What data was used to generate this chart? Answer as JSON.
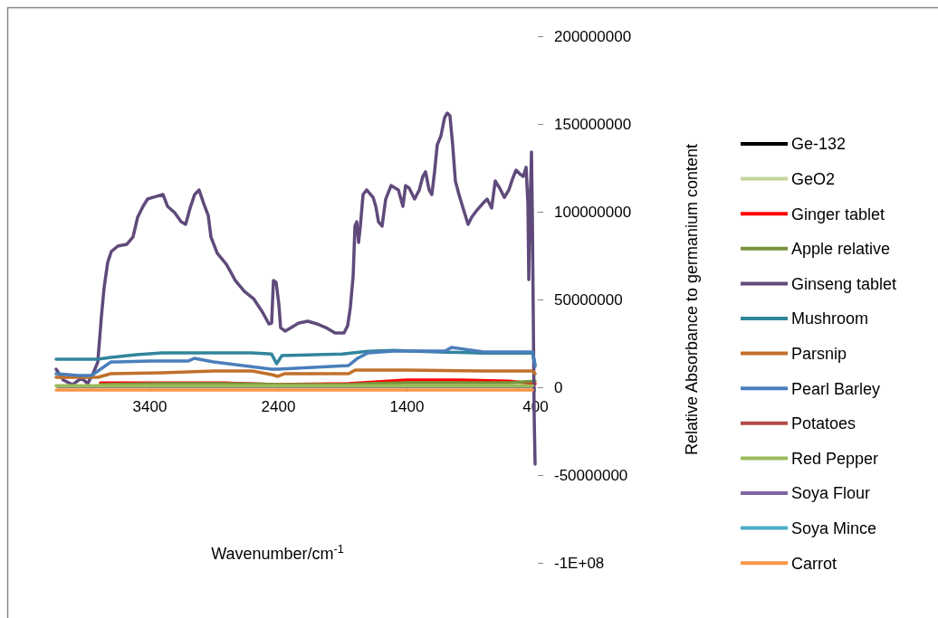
{
  "chart_data": {
    "type": "line",
    "xlabel": "Wavenumber/cm$^{-1}$",
    "ylabel": "Relative Absorbance to germanium content",
    "xlim": [
      4125,
      400
    ],
    "xticks": [
      3400,
      2400,
      1400,
      400
    ],
    "ylim": [
      -100000000,
      200000000
    ],
    "yticks": [
      {
        "value": 200000000,
        "label": "200000000"
      },
      {
        "value": 150000000,
        "label": "150000000"
      },
      {
        "value": 100000000,
        "label": "100000000"
      },
      {
        "value": 50000000,
        "label": "50000000"
      },
      0,
      {
        "value": -50000000,
        "label": "-50000000"
      },
      {
        "value": -100000000,
        "label": "-1E+08"
      }
    ],
    "grid": false,
    "legend": "right",
    "marker": "none",
    "line_style": "solid",
    "series": [
      {
        "name": "Ge-132",
        "color": "#000000"
      },
      {
        "name": "GeO2",
        "color": "#c4d79b"
      },
      {
        "name": "Ginger tablet",
        "color": "#ff0000",
        "x": [
          3780,
          3300,
          2800,
          2400,
          1850,
          1400,
          1000,
          600,
          400
        ],
        "values": [
          2400000,
          2400000,
          2400000,
          1500000,
          2000000,
          4100000,
          4100000,
          3500000,
          2000000
        ]
      },
      {
        "name": "Apple relative",
        "color": "#77933c",
        "x": [
          3780,
          3300,
          2800,
          2400,
          1850,
          1700,
          1400,
          1000,
          600,
          400
        ],
        "values": [
          1500000,
          2100000,
          2100000,
          1500000,
          1500000,
          2100000,
          2600000,
          2600000,
          2600000,
          3500000
        ]
      },
      {
        "name": "Ginseng tablet",
        "color": "#604a7b",
        "x": [
          4125,
          4069,
          3998,
          3928,
          3879,
          3836,
          3801,
          3773,
          3752,
          3724,
          3696,
          3646,
          3576,
          3527,
          3491,
          3449,
          3414,
          3373,
          3294,
          3259,
          3203,
          3153,
          3118,
          3083,
          3048,
          3013,
          2977,
          2942,
          2921,
          2872,
          2801,
          2731,
          2660,
          2590,
          2520,
          2470,
          2449,
          2435,
          2414,
          2393,
          2379,
          2344,
          2238,
          2168,
          2097,
          2027,
          1956,
          1886,
          1858,
          1837,
          1815,
          1801,
          1787,
          1773,
          1759,
          1738,
          1710,
          1660,
          1639,
          1618,
          1590,
          1562,
          1520,
          1463,
          1428,
          1407,
          1379,
          1337,
          1301,
          1273,
          1252,
          1224,
          1203,
          1182,
          1161,
          1132,
          1104,
          1083,
          1062,
          1041,
          1020,
          992,
          956,
          921,
          893,
          851,
          808,
          773,
          738,
          710,
          675,
          639,
          604,
          576,
          548,
          520,
          492,
          470,
          456,
          449,
          442,
          428,
          421,
          414,
          407,
          400
        ],
        "values": [
          10300000,
          4100000,
          1500000,
          5200000,
          2100000,
          8200000,
          14400000,
          40200000,
          56700000,
          71100000,
          77300000,
          80400000,
          81400000,
          85600000,
          96900000,
          103100000,
          107200000,
          108200000,
          109800000,
          103100000,
          99500000,
          94300000,
          92800000,
          102100000,
          109800000,
          112400000,
          104600000,
          97900000,
          85600000,
          76300000,
          70100000,
          60800000,
          54600000,
          50500000,
          42800000,
          36100000,
          36600000,
          60800000,
          59800000,
          47400000,
          34000000,
          32000000,
          36600000,
          37600000,
          36100000,
          34000000,
          30900000,
          30900000,
          35100000,
          45400000,
          63400000,
          91800000,
          94300000,
          82500000,
          91800000,
          109800000,
          112400000,
          108200000,
          103100000,
          94300000,
          91800000,
          107200000,
          114900000,
          112400000,
          103100000,
          114900000,
          113400000,
          107200000,
          112400000,
          120100000,
          122700000,
          112400000,
          109800000,
          122700000,
          138100000,
          143300000,
          153600000,
          156200000,
          154600000,
          138100000,
          117500000,
          109800000,
          101000000,
          92800000,
          96900000,
          101000000,
          104600000,
          107200000,
          102100000,
          117500000,
          113400000,
          108200000,
          112400000,
          118600000,
          123700000,
          121600000,
          120100000,
          125300000,
          104600000,
          61300000,
          94300000,
          134000000,
          96900000,
          40200000,
          -16500000,
          -43800000
        ]
      },
      {
        "name": "Mushroom",
        "color": "#31859c",
        "x": [
          4125,
          3800,
          3700,
          3500,
          3300,
          2600,
          2450,
          2410,
          2370,
          1900,
          1700,
          1500,
          1100,
          800,
          420,
          400
        ],
        "values": [
          16000000,
          16000000,
          17000000,
          18500000,
          19600000,
          19600000,
          19000000,
          13400000,
          18000000,
          19000000,
          20500000,
          21000000,
          20000000,
          19500000,
          19500000,
          13000000
        ]
      },
      {
        "name": "Parsnip",
        "color": "#c0702c",
        "x": [
          4125,
          3800,
          3700,
          3300,
          2900,
          2600,
          2450,
          2400,
          2350,
          1850,
          1800,
          1400,
          800,
          420,
          400
        ],
        "values": [
          5700000,
          5700000,
          7700000,
          8200000,
          9300000,
          9300000,
          7200000,
          6200000,
          7700000,
          7700000,
          9800000,
          9800000,
          9300000,
          9300000,
          7700000
        ]
      },
      {
        "name": "Pearl Barley",
        "color": "#4a7ebb",
        "x": [
          4125,
          3950,
          3850,
          3700,
          3650,
          3400,
          3100,
          3050,
          2900,
          2450,
          2400,
          1850,
          1780,
          1700,
          1500,
          1100,
          1050,
          800,
          420,
          400
        ],
        "values": [
          7700000,
          6700000,
          6700000,
          14400000,
          14400000,
          14900000,
          14900000,
          16500000,
          14400000,
          10300000,
          10300000,
          12400000,
          16500000,
          19600000,
          20600000,
          20600000,
          22700000,
          20100000,
          20100000,
          11900000
        ]
      },
      {
        "name": "Potatoes",
        "color": "#b54a47"
      },
      {
        "name": "Red Pepper",
        "color": "#9bbb59",
        "x": [
          4125,
          3950,
          3800,
          3000,
          2000,
          1000,
          420
        ],
        "values": [
          900000,
          900000,
          900000,
          900000,
          900000,
          900000,
          900000
        ]
      },
      {
        "name": "Soya Flour",
        "color": "#8064a2"
      },
      {
        "name": "Soya Mince",
        "color": "#4bacc6"
      },
      {
        "name": "Carrot",
        "color": "#f79646",
        "x": [
          4125,
          3000,
          2000,
          1000,
          420
        ],
        "values": [
          -1500000,
          -1500000,
          -1500000,
          -1500000,
          -1500000
        ]
      }
    ]
  }
}
